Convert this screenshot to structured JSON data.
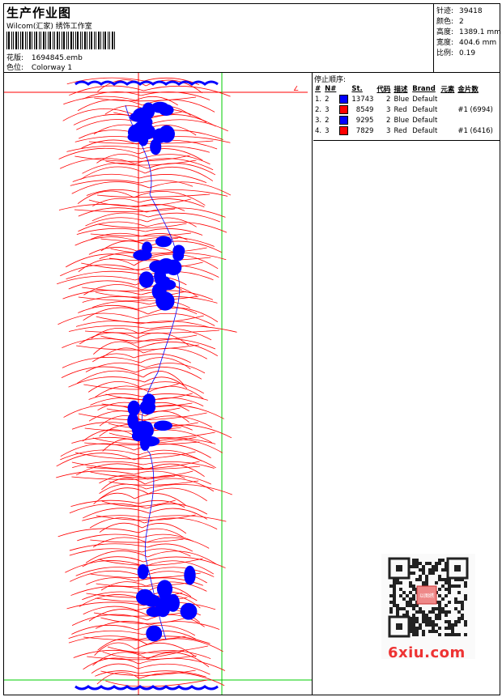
{
  "header": {
    "title": "生产作业图",
    "studio": "Wilcom(汇家) 绣饰工作室",
    "design_label": "花版:",
    "design_file": "1694845.emb",
    "colorway_label": "色位:",
    "colorway": "Colorway 1"
  },
  "stats": {
    "stitches_label": "针迹:",
    "stitches": "39418",
    "colors_label": "颜色:",
    "colors": "2",
    "height_label": "高度:",
    "height": "1389.1 mm",
    "width_label": "宽度:",
    "width": "404.6 mm",
    "scale_label": "比例:",
    "scale": "0.19"
  },
  "stop_sequence": {
    "title": "停止顺序:",
    "headers": [
      "#",
      "N#",
      "",
      "St.",
      "代码",
      "描述",
      "Brand",
      "元素",
      "金片数"
    ],
    "rows": [
      {
        "idx": "1.",
        "n": "2",
        "color": "#0000ff",
        "stitches": "13743",
        "code": "2",
        "desc": "Blue",
        "brand": "Default",
        "element": "",
        "sequin": ""
      },
      {
        "idx": "2.",
        "n": "3",
        "color": "#ff0000",
        "stitches": "8549",
        "code": "3",
        "desc": "Red",
        "brand": "Default",
        "element": "",
        "sequin": "#1 (6994)"
      },
      {
        "idx": "3.",
        "n": "2",
        "color": "#0000ff",
        "stitches": "9295",
        "code": "2",
        "desc": "Blue",
        "brand": "Default",
        "element": "",
        "sequin": ""
      },
      {
        "idx": "4.",
        "n": "3",
        "color": "#ff0000",
        "stitches": "7829",
        "code": "3",
        "desc": "Red",
        "brand": "Default",
        "element": "",
        "sequin": "#1 (6416)"
      }
    ]
  },
  "watermark": {
    "site": "6xiu.com",
    "qr_badge": "以图绣"
  },
  "colors": {
    "red": "#ff0000",
    "blue": "#0000ff",
    "green": "#00cc00"
  },
  "icons": {
    "design_preview": "embroidery-design-preview",
    "qr": "qr-code-icon"
  }
}
